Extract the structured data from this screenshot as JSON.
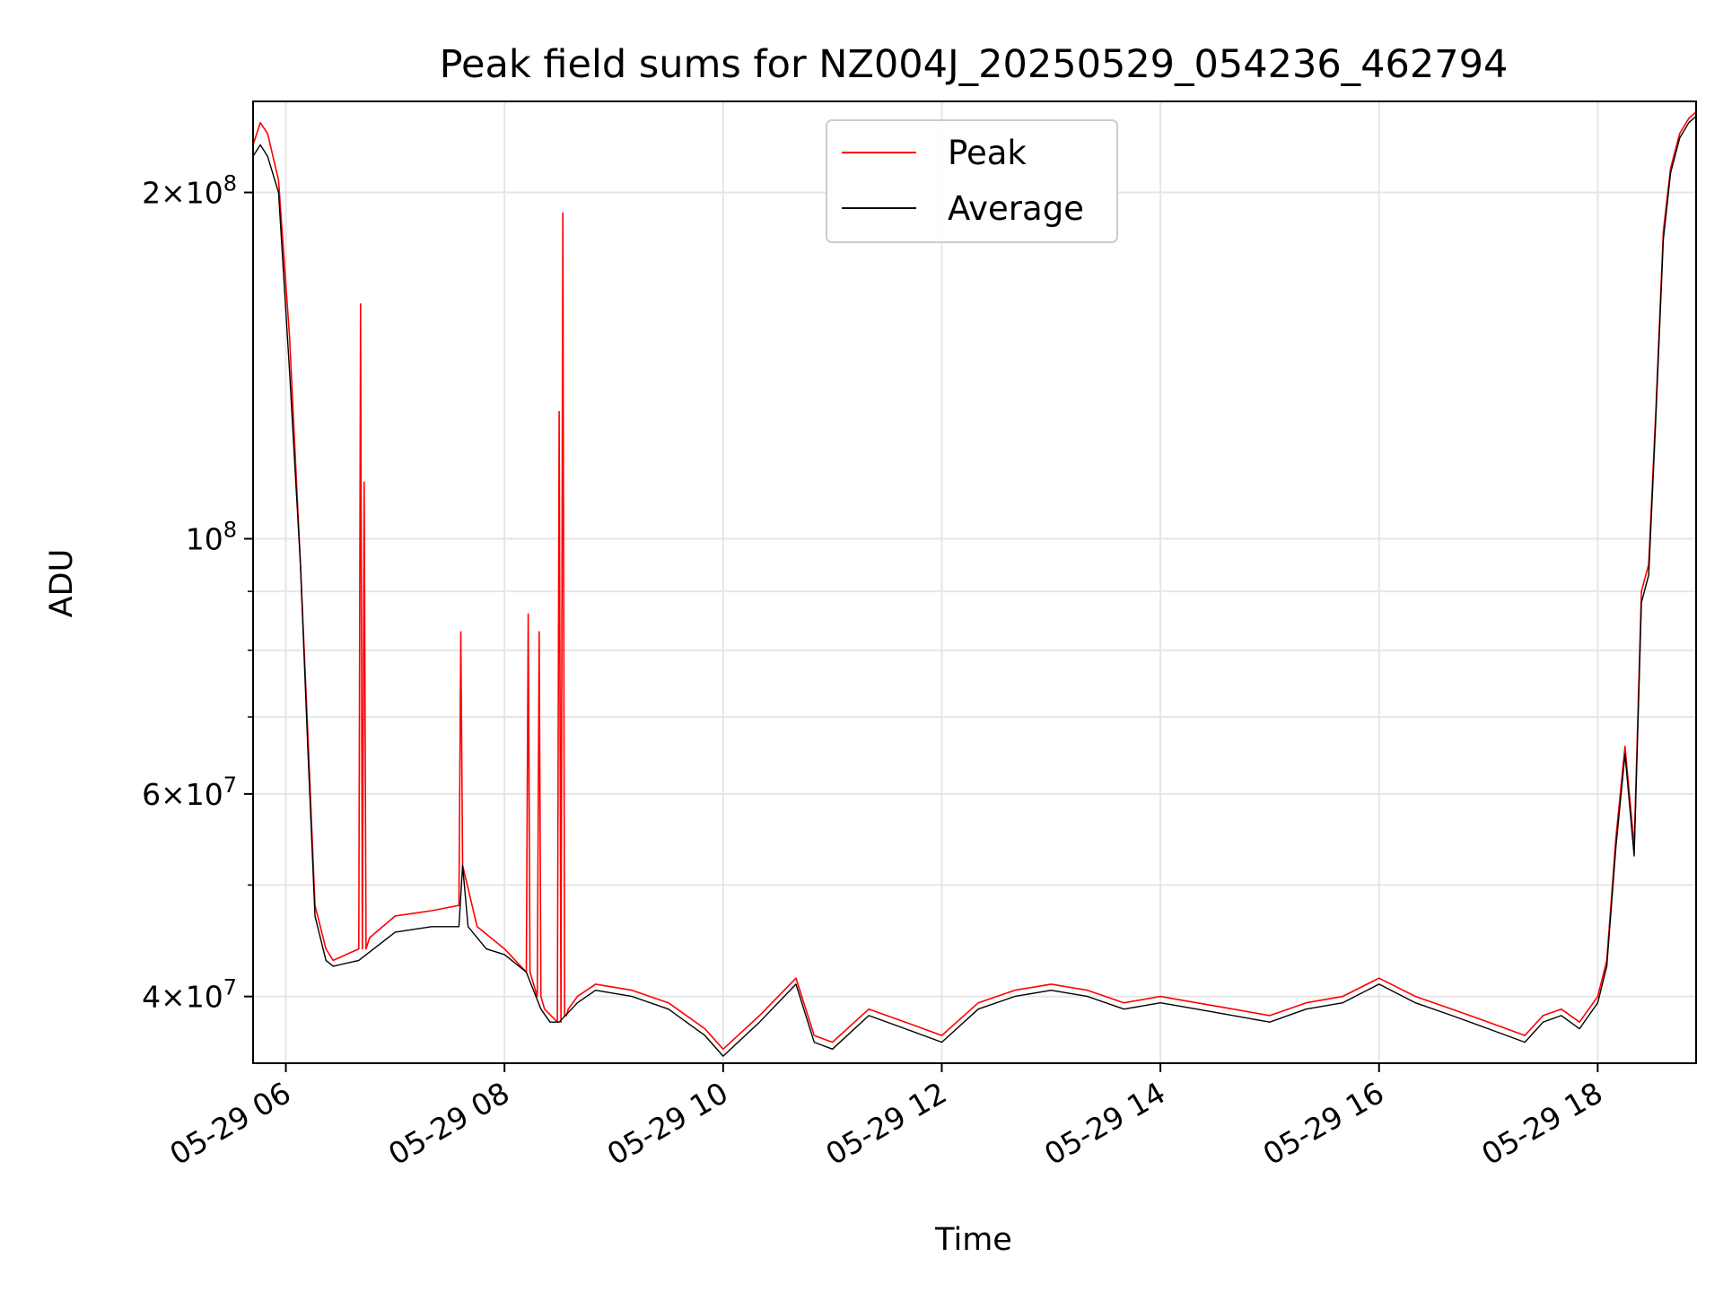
{
  "chart_data": {
    "type": "line",
    "title": "Peak field sums for NZ004J_20250529_054236_462794",
    "xlabel": "Time",
    "ylabel": "ADU",
    "y_scale": "log",
    "ylim": [
      35000000,
      240000000
    ],
    "xlim": [
      "2025-05-29 05:42",
      "2025-05-29 18:54"
    ],
    "grid": true,
    "legend_position": "upper center",
    "x_tick_labels": [
      "05-29 06",
      "05-29 08",
      "05-29 10",
      "05-29 12",
      "05-29 14",
      "05-29 16",
      "05-29 18"
    ],
    "x_ticks": [
      "2025-05-29 06:00",
      "2025-05-29 08:00",
      "2025-05-29 10:00",
      "2025-05-29 12:00",
      "2025-05-29 14:00",
      "2025-05-29 16:00",
      "2025-05-29 18:00"
    ],
    "y_major_ticks": [
      {
        "value": 40000000,
        "mantissa": "4",
        "exp": "7"
      },
      {
        "value": 60000000,
        "mantissa": "6",
        "exp": "7"
      },
      {
        "value": 100000000,
        "mantissa": "",
        "exp": "8"
      },
      {
        "value": 200000000,
        "mantissa": "2",
        "exp": "8"
      }
    ],
    "y_minor_gridlines": [
      50000000,
      70000000,
      80000000,
      90000000
    ],
    "series": [
      {
        "name": "Peak",
        "color": "#ff0000",
        "x": [
          "2025-05-29 05:42",
          "2025-05-29 05:46",
          "2025-05-29 05:50",
          "2025-05-29 05:56",
          "2025-05-29 06:02",
          "2025-05-29 06:08",
          "2025-05-29 06:12",
          "2025-05-29 06:16",
          "2025-05-29 06:22",
          "2025-05-29 06:26",
          "2025-05-29 06:40",
          "2025-05-29 06:41",
          "2025-05-29 06:42",
          "2025-05-29 06:43",
          "2025-05-29 06:44",
          "2025-05-29 06:46",
          "2025-05-29 07:00",
          "2025-05-29 07:20",
          "2025-05-29 07:35",
          "2025-05-29 07:36",
          "2025-05-29 07:37",
          "2025-05-29 07:45",
          "2025-05-29 08:00",
          "2025-05-29 08:12",
          "2025-05-29 08:13",
          "2025-05-29 08:14",
          "2025-05-29 08:18",
          "2025-05-29 08:19",
          "2025-05-29 08:20",
          "2025-05-29 08:22",
          "2025-05-29 08:29",
          "2025-05-29 08:30",
          "2025-05-29 08:31",
          "2025-05-29 08:32",
          "2025-05-29 08:33",
          "2025-05-29 08:34",
          "2025-05-29 08:35",
          "2025-05-29 08:40",
          "2025-05-29 08:50",
          "2025-05-29 09:10",
          "2025-05-29 09:30",
          "2025-05-29 09:50",
          "2025-05-29 10:00",
          "2025-05-29 10:20",
          "2025-05-29 10:40",
          "2025-05-29 10:50",
          "2025-05-29 11:00",
          "2025-05-29 11:20",
          "2025-05-29 11:40",
          "2025-05-29 12:00",
          "2025-05-29 12:20",
          "2025-05-29 12:40",
          "2025-05-29 13:00",
          "2025-05-29 13:20",
          "2025-05-29 13:40",
          "2025-05-29 14:00",
          "2025-05-29 14:20",
          "2025-05-29 14:40",
          "2025-05-29 15:00",
          "2025-05-29 15:20",
          "2025-05-29 15:40",
          "2025-05-29 16:00",
          "2025-05-29 16:20",
          "2025-05-29 16:40",
          "2025-05-29 17:00",
          "2025-05-29 17:20",
          "2025-05-29 17:30",
          "2025-05-29 17:40",
          "2025-05-29 17:50",
          "2025-05-29 18:00",
          "2025-05-29 18:05",
          "2025-05-29 18:10",
          "2025-05-29 18:15",
          "2025-05-29 18:20",
          "2025-05-29 18:24",
          "2025-05-29 18:28",
          "2025-05-29 18:32",
          "2025-05-29 18:36",
          "2025-05-29 18:40",
          "2025-05-29 18:45",
          "2025-05-29 18:50",
          "2025-05-29 18:54"
        ],
        "values": [
          220000000,
          230000000,
          225000000,
          205000000,
          150000000,
          95000000,
          68000000,
          48000000,
          44000000,
          43000000,
          44000000,
          160000000,
          44000000,
          112000000,
          44000000,
          45000000,
          47000000,
          47500000,
          48000000,
          83000000,
          52000000,
          46000000,
          44000000,
          42000000,
          86000000,
          42000000,
          40000000,
          83000000,
          40000000,
          39000000,
          38000000,
          129000000,
          38000000,
          192000000,
          38500000,
          38500000,
          39000000,
          40000000,
          41000000,
          40500000,
          39500000,
          37500000,
          36000000,
          38500000,
          41500000,
          37000000,
          36500000,
          39000000,
          38000000,
          37000000,
          39500000,
          40500000,
          41000000,
          40500000,
          39500000,
          40000000,
          39500000,
          39000000,
          38500000,
          39500000,
          40000000,
          41500000,
          40000000,
          39000000,
          38000000,
          37000000,
          38500000,
          39000000,
          38000000,
          40000000,
          43000000,
          55000000,
          66000000,
          54000000,
          90000000,
          95000000,
          130000000,
          185000000,
          210000000,
          225000000,
          232000000,
          235000000
        ]
      },
      {
        "name": "Average",
        "color": "#000000",
        "x": [
          "2025-05-29 05:42",
          "2025-05-29 05:46",
          "2025-05-29 05:50",
          "2025-05-29 05:56",
          "2025-05-29 06:02",
          "2025-05-29 06:08",
          "2025-05-29 06:12",
          "2025-05-29 06:16",
          "2025-05-29 06:22",
          "2025-05-29 06:26",
          "2025-05-29 06:40",
          "2025-05-29 07:00",
          "2025-05-29 07:20",
          "2025-05-29 07:35",
          "2025-05-29 07:37",
          "2025-05-29 07:40",
          "2025-05-29 07:50",
          "2025-05-29 08:00",
          "2025-05-29 08:12",
          "2025-05-29 08:20",
          "2025-05-29 08:25",
          "2025-05-29 08:30",
          "2025-05-29 08:40",
          "2025-05-29 08:50",
          "2025-05-29 09:10",
          "2025-05-29 09:30",
          "2025-05-29 09:50",
          "2025-05-29 10:00",
          "2025-05-29 10:20",
          "2025-05-29 10:40",
          "2025-05-29 10:50",
          "2025-05-29 11:00",
          "2025-05-29 11:20",
          "2025-05-29 11:40",
          "2025-05-29 12:00",
          "2025-05-29 12:20",
          "2025-05-29 12:40",
          "2025-05-29 13:00",
          "2025-05-29 13:20",
          "2025-05-29 13:40",
          "2025-05-29 14:00",
          "2025-05-29 14:20",
          "2025-05-29 14:40",
          "2025-05-29 15:00",
          "2025-05-29 15:20",
          "2025-05-29 15:40",
          "2025-05-29 16:00",
          "2025-05-29 16:20",
          "2025-05-29 16:40",
          "2025-05-29 17:00",
          "2025-05-29 17:20",
          "2025-05-29 17:30",
          "2025-05-29 17:40",
          "2025-05-29 17:50",
          "2025-05-29 18:00",
          "2025-05-29 18:05",
          "2025-05-29 18:10",
          "2025-05-29 18:15",
          "2025-05-29 18:20",
          "2025-05-29 18:24",
          "2025-05-29 18:28",
          "2025-05-29 18:32",
          "2025-05-29 18:36",
          "2025-05-29 18:40",
          "2025-05-29 18:45",
          "2025-05-29 18:50",
          "2025-05-29 18:54"
        ],
        "values": [
          215000000,
          220000000,
          215000000,
          200000000,
          140000000,
          95000000,
          66000000,
          47000000,
          43000000,
          42500000,
          43000000,
          45500000,
          46000000,
          46000000,
          52000000,
          46000000,
          44000000,
          43500000,
          42000000,
          39000000,
          38000000,
          38000000,
          39500000,
          40500000,
          40000000,
          39000000,
          37000000,
          35500000,
          38000000,
          41000000,
          36500000,
          36000000,
          38500000,
          37500000,
          36500000,
          39000000,
          40000000,
          40500000,
          40000000,
          39000000,
          39500000,
          39000000,
          38500000,
          38000000,
          39000000,
          39500000,
          41000000,
          39500000,
          38500000,
          37500000,
          36500000,
          38000000,
          38500000,
          37500000,
          39500000,
          42500000,
          54000000,
          65000000,
          53000000,
          88000000,
          93000000,
          128000000,
          182000000,
          208000000,
          223000000,
          230000000,
          233000000
        ]
      }
    ]
  }
}
